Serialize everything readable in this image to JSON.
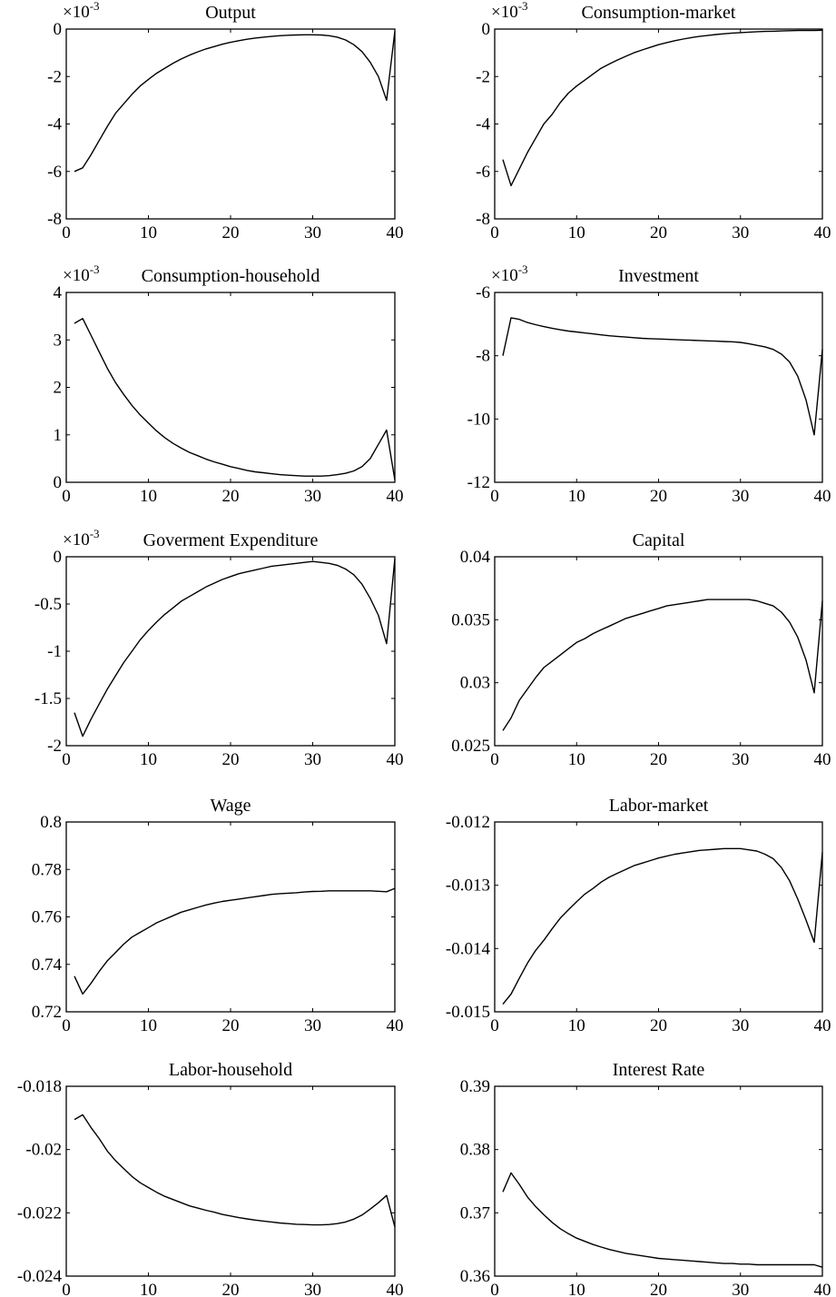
{
  "chart_data": [
    {
      "type": "line",
      "title": "Output",
      "exponent_label": "×10",
      "exponent_power": "-3",
      "xlim": [
        0,
        40
      ],
      "ylim": [
        -8,
        0
      ],
      "xticks": [
        0,
        10,
        20,
        30,
        40
      ],
      "xtick_labels": [
        "0",
        "10",
        "20",
        "30",
        "40"
      ],
      "yticks": [
        -8,
        -6,
        -4,
        -2,
        0
      ],
      "ytick_labels": [
        "-8",
        "-6",
        "-4",
        "-2",
        "0"
      ],
      "x": [
        1,
        2,
        3,
        4,
        5,
        6,
        7,
        8,
        9,
        10,
        11,
        12,
        13,
        14,
        15,
        16,
        17,
        18,
        19,
        20,
        21,
        22,
        23,
        24,
        25,
        26,
        27,
        28,
        29,
        30,
        31,
        32,
        33,
        34,
        35,
        36,
        37,
        38,
        39,
        40
      ],
      "y": [
        -6.0,
        -5.85,
        -5.3,
        -4.7,
        -4.1,
        -3.55,
        -3.15,
        -2.75,
        -2.4,
        -2.12,
        -1.86,
        -1.65,
        -1.44,
        -1.26,
        -1.1,
        -0.96,
        -0.84,
        -0.74,
        -0.64,
        -0.56,
        -0.49,
        -0.43,
        -0.38,
        -0.34,
        -0.31,
        -0.28,
        -0.26,
        -0.25,
        -0.24,
        -0.24,
        -0.25,
        -0.28,
        -0.34,
        -0.46,
        -0.66,
        -0.95,
        -1.4,
        -2.0,
        -3.0,
        -0.1
      ]
    },
    {
      "type": "line",
      "title": "Consumption-market",
      "exponent_label": "×10",
      "exponent_power": "-3",
      "xlim": [
        0,
        40
      ],
      "ylim": [
        -8,
        0
      ],
      "xticks": [
        0,
        10,
        20,
        30,
        40
      ],
      "xtick_labels": [
        "0",
        "10",
        "20",
        "30",
        "40"
      ],
      "yticks": [
        -8,
        -6,
        -4,
        -2,
        0
      ],
      "ytick_labels": [
        "-8",
        "-6",
        "-4",
        "-2",
        "0"
      ],
      "x": [
        1,
        2,
        3,
        4,
        5,
        6,
        7,
        8,
        9,
        10,
        11,
        12,
        13,
        14,
        15,
        16,
        17,
        18,
        19,
        20,
        21,
        22,
        23,
        24,
        25,
        26,
        27,
        28,
        29,
        30,
        31,
        32,
        33,
        34,
        35,
        36,
        37,
        38,
        39,
        40
      ],
      "y": [
        -5.5,
        -6.6,
        -5.9,
        -5.2,
        -4.6,
        -4.0,
        -3.6,
        -3.1,
        -2.7,
        -2.4,
        -2.15,
        -1.9,
        -1.65,
        -1.47,
        -1.3,
        -1.15,
        -1.0,
        -0.88,
        -0.77,
        -0.66,
        -0.57,
        -0.49,
        -0.42,
        -0.36,
        -0.31,
        -0.27,
        -0.23,
        -0.2,
        -0.17,
        -0.15,
        -0.13,
        -0.11,
        -0.1,
        -0.09,
        -0.08,
        -0.07,
        -0.06,
        -0.06,
        -0.06,
        -0.05
      ]
    },
    {
      "type": "line",
      "title": "Consumption-household",
      "exponent_label": "×10",
      "exponent_power": "-3",
      "xlim": [
        0,
        40
      ],
      "ylim": [
        0,
        4
      ],
      "xticks": [
        0,
        10,
        20,
        30,
        40
      ],
      "xtick_labels": [
        "0",
        "10",
        "20",
        "30",
        "40"
      ],
      "yticks": [
        0,
        1,
        2,
        3,
        4
      ],
      "ytick_labels": [
        "0",
        "1",
        "2",
        "3",
        "4"
      ],
      "x": [
        1,
        2,
        3,
        4,
        5,
        6,
        7,
        8,
        9,
        10,
        11,
        12,
        13,
        14,
        15,
        16,
        17,
        18,
        19,
        20,
        21,
        22,
        23,
        24,
        25,
        26,
        27,
        28,
        29,
        30,
        31,
        32,
        33,
        34,
        35,
        36,
        37,
        38,
        39,
        40
      ],
      "y": [
        3.35,
        3.45,
        3.1,
        2.75,
        2.4,
        2.1,
        1.85,
        1.62,
        1.42,
        1.25,
        1.08,
        0.94,
        0.82,
        0.72,
        0.63,
        0.56,
        0.49,
        0.43,
        0.38,
        0.33,
        0.29,
        0.25,
        0.22,
        0.2,
        0.18,
        0.16,
        0.15,
        0.14,
        0.13,
        0.13,
        0.13,
        0.14,
        0.16,
        0.19,
        0.24,
        0.33,
        0.5,
        0.8,
        1.1,
        0.05
      ]
    },
    {
      "type": "line",
      "title": "Investment",
      "exponent_label": "×10",
      "exponent_power": "-3",
      "xlim": [
        0,
        40
      ],
      "ylim": [
        -12,
        -6
      ],
      "xticks": [
        0,
        10,
        20,
        30,
        40
      ],
      "xtick_labels": [
        "0",
        "10",
        "20",
        "30",
        "40"
      ],
      "yticks": [
        -12,
        -10,
        -8,
        -6
      ],
      "ytick_labels": [
        "-12",
        "-10",
        "-8",
        "-6"
      ],
      "x": [
        1,
        2,
        3,
        4,
        5,
        6,
        7,
        8,
        9,
        10,
        11,
        12,
        13,
        14,
        15,
        16,
        17,
        18,
        19,
        20,
        21,
        22,
        23,
        24,
        25,
        26,
        27,
        28,
        29,
        30,
        31,
        32,
        33,
        34,
        35,
        36,
        37,
        38,
        39,
        40
      ],
      "y": [
        -8.0,
        -6.8,
        -6.85,
        -6.95,
        -7.02,
        -7.08,
        -7.13,
        -7.18,
        -7.22,
        -7.25,
        -7.28,
        -7.31,
        -7.34,
        -7.37,
        -7.39,
        -7.41,
        -7.43,
        -7.45,
        -7.46,
        -7.47,
        -7.48,
        -7.49,
        -7.5,
        -7.51,
        -7.52,
        -7.53,
        -7.54,
        -7.55,
        -7.56,
        -7.58,
        -7.62,
        -7.67,
        -7.72,
        -7.8,
        -7.95,
        -8.2,
        -8.65,
        -9.4,
        -10.5,
        -7.8
      ]
    },
    {
      "type": "line",
      "title": "Goverment Expenditure",
      "exponent_label": "×10",
      "exponent_power": "-3",
      "xlim": [
        0,
        40
      ],
      "ylim": [
        -2,
        0
      ],
      "xticks": [
        0,
        10,
        20,
        30,
        40
      ],
      "xtick_labels": [
        "0",
        "10",
        "20",
        "30",
        "40"
      ],
      "yticks": [
        -2,
        -1.5,
        -1,
        -0.5,
        0
      ],
      "ytick_labels": [
        "-2",
        "-1.5",
        "-1",
        "-0.5",
        "0"
      ],
      "x": [
        1,
        2,
        3,
        4,
        5,
        6,
        7,
        8,
        9,
        10,
        11,
        12,
        13,
        14,
        15,
        16,
        17,
        18,
        19,
        20,
        21,
        22,
        23,
        24,
        25,
        26,
        27,
        28,
        29,
        30,
        31,
        32,
        33,
        34,
        35,
        36,
        37,
        38,
        39,
        40
      ],
      "y": [
        -1.65,
        -1.9,
        -1.72,
        -1.56,
        -1.4,
        -1.26,
        -1.12,
        -1.0,
        -0.88,
        -0.78,
        -0.69,
        -0.61,
        -0.54,
        -0.47,
        -0.42,
        -0.37,
        -0.32,
        -0.28,
        -0.24,
        -0.21,
        -0.18,
        -0.16,
        -0.14,
        -0.12,
        -0.1,
        -0.09,
        -0.08,
        -0.07,
        -0.06,
        -0.05,
        -0.06,
        -0.07,
        -0.09,
        -0.13,
        -0.19,
        -0.29,
        -0.44,
        -0.62,
        -0.92,
        -0.02
      ]
    },
    {
      "type": "line",
      "title": "Capital",
      "xlim": [
        0,
        40
      ],
      "ylim": [
        0.025,
        0.04
      ],
      "xticks": [
        0,
        10,
        20,
        30,
        40
      ],
      "xtick_labels": [
        "0",
        "10",
        "20",
        "30",
        "40"
      ],
      "yticks": [
        0.025,
        0.03,
        0.035,
        0.04
      ],
      "ytick_labels": [
        "0.025",
        "0.03",
        "0.035",
        "0.04"
      ],
      "x": [
        1,
        2,
        3,
        4,
        5,
        6,
        7,
        8,
        9,
        10,
        11,
        12,
        13,
        14,
        15,
        16,
        17,
        18,
        19,
        20,
        21,
        22,
        23,
        24,
        25,
        26,
        27,
        28,
        29,
        30,
        31,
        32,
        33,
        34,
        35,
        36,
        37,
        38,
        39,
        40
      ],
      "y": [
        0.0262,
        0.0272,
        0.0286,
        0.0295,
        0.0304,
        0.0312,
        0.0317,
        0.0322,
        0.0327,
        0.0332,
        0.0335,
        0.0339,
        0.0342,
        0.0345,
        0.0348,
        0.0351,
        0.0353,
        0.0355,
        0.0357,
        0.0359,
        0.0361,
        0.0362,
        0.0363,
        0.0364,
        0.0365,
        0.0366,
        0.0366,
        0.0366,
        0.0366,
        0.0366,
        0.0366,
        0.0365,
        0.0363,
        0.0361,
        0.0356,
        0.0348,
        0.0336,
        0.0318,
        0.0292,
        0.0365
      ]
    },
    {
      "type": "line",
      "title": "Wage",
      "xlim": [
        0,
        40
      ],
      "ylim": [
        0.72,
        0.8
      ],
      "xticks": [
        0,
        10,
        20,
        30,
        40
      ],
      "xtick_labels": [
        "0",
        "10",
        "20",
        "30",
        "40"
      ],
      "yticks": [
        0.72,
        0.74,
        0.76,
        0.78,
        0.8
      ],
      "ytick_labels": [
        "0.72",
        "0.74",
        "0.76",
        "0.78",
        "0.8"
      ],
      "x": [
        1,
        2,
        3,
        4,
        5,
        6,
        7,
        8,
        9,
        10,
        11,
        12,
        13,
        14,
        15,
        16,
        17,
        18,
        19,
        20,
        21,
        22,
        23,
        24,
        25,
        26,
        27,
        28,
        29,
        30,
        31,
        32,
        33,
        34,
        35,
        36,
        37,
        38,
        39,
        40
      ],
      "y": [
        0.735,
        0.7275,
        0.732,
        0.737,
        0.7415,
        0.745,
        0.7485,
        0.7515,
        0.7535,
        0.7555,
        0.7575,
        0.759,
        0.7605,
        0.762,
        0.763,
        0.764,
        0.765,
        0.7658,
        0.7665,
        0.767,
        0.7675,
        0.768,
        0.7685,
        0.769,
        0.7695,
        0.7698,
        0.77,
        0.7702,
        0.7705,
        0.7707,
        0.7708,
        0.771,
        0.771,
        0.771,
        0.771,
        0.771,
        0.771,
        0.7708,
        0.7706,
        0.772
      ]
    },
    {
      "type": "line",
      "title": "Labor-market",
      "xlim": [
        0,
        40
      ],
      "ylim": [
        -0.015,
        -0.012
      ],
      "xticks": [
        0,
        10,
        20,
        30,
        40
      ],
      "xtick_labels": [
        "0",
        "10",
        "20",
        "30",
        "40"
      ],
      "yticks": [
        -0.015,
        -0.014,
        -0.013,
        -0.012
      ],
      "ytick_labels": [
        "-0.015",
        "-0.014",
        "-0.013",
        "-0.012"
      ],
      "x": [
        1,
        2,
        3,
        4,
        5,
        6,
        7,
        8,
        9,
        10,
        11,
        12,
        13,
        14,
        15,
        16,
        17,
        18,
        19,
        20,
        21,
        22,
        23,
        24,
        25,
        26,
        27,
        28,
        29,
        30,
        31,
        32,
        33,
        34,
        35,
        36,
        37,
        38,
        39,
        40
      ],
      "y": [
        -0.01488,
        -0.01472,
        -0.01447,
        -0.01423,
        -0.01403,
        -0.01387,
        -0.01369,
        -0.01352,
        -0.01339,
        -0.01326,
        -0.01314,
        -0.01305,
        -0.01295,
        -0.01287,
        -0.01281,
        -0.01275,
        -0.01269,
        -0.01265,
        -0.01261,
        -0.01257,
        -0.01254,
        -0.01251,
        -0.01249,
        -0.01247,
        -0.01245,
        -0.01244,
        -0.01243,
        -0.01242,
        -0.01242,
        -0.01242,
        -0.01244,
        -0.01246,
        -0.01251,
        -0.01258,
        -0.01272,
        -0.01293,
        -0.01322,
        -0.01355,
        -0.0139,
        -0.01248
      ]
    },
    {
      "type": "line",
      "title": "Labor-household",
      "xlim": [
        0,
        40
      ],
      "ylim": [
        -0.024,
        -0.018
      ],
      "xticks": [
        0,
        10,
        20,
        30,
        40
      ],
      "xtick_labels": [
        "0",
        "10",
        "20",
        "30",
        "40"
      ],
      "yticks": [
        -0.024,
        -0.022,
        -0.02,
        -0.018
      ],
      "ytick_labels": [
        "-0.024",
        "-0.022",
        "-0.02",
        "-0.018"
      ],
      "x": [
        1,
        2,
        3,
        4,
        5,
        6,
        7,
        8,
        9,
        10,
        11,
        12,
        13,
        14,
        15,
        16,
        17,
        18,
        19,
        20,
        21,
        22,
        23,
        24,
        25,
        26,
        27,
        28,
        29,
        30,
        31,
        32,
        33,
        34,
        35,
        36,
        37,
        38,
        39,
        40
      ],
      "y": [
        -0.01905,
        -0.0189,
        -0.0193,
        -0.01965,
        -0.02005,
        -0.02035,
        -0.0206,
        -0.02085,
        -0.02105,
        -0.0212,
        -0.02135,
        -0.02148,
        -0.02158,
        -0.02168,
        -0.02178,
        -0.02185,
        -0.02192,
        -0.02198,
        -0.02205,
        -0.0221,
        -0.02215,
        -0.02219,
        -0.02223,
        -0.02226,
        -0.02229,
        -0.02232,
        -0.02234,
        -0.02236,
        -0.02237,
        -0.02238,
        -0.02238,
        -0.02237,
        -0.02234,
        -0.02229,
        -0.0222,
        -0.02207,
        -0.02188,
        -0.02168,
        -0.02145,
        -0.02245
      ]
    },
    {
      "type": "line",
      "title": "Interest Rate",
      "xlim": [
        0,
        40
      ],
      "ylim": [
        0.36,
        0.39
      ],
      "xticks": [
        0,
        10,
        20,
        30,
        40
      ],
      "xtick_labels": [
        "0",
        "10",
        "20",
        "30",
        "40"
      ],
      "yticks": [
        0.36,
        0.37,
        0.38,
        0.39
      ],
      "ytick_labels": [
        "0.36",
        "0.37",
        "0.38",
        "0.39"
      ],
      "x": [
        1,
        2,
        3,
        4,
        5,
        6,
        7,
        8,
        9,
        10,
        11,
        12,
        13,
        14,
        15,
        16,
        17,
        18,
        19,
        20,
        21,
        22,
        23,
        24,
        25,
        26,
        27,
        28,
        29,
        30,
        31,
        32,
        33,
        34,
        35,
        36,
        37,
        38,
        39,
        40
      ],
      "y": [
        0.3733,
        0.3763,
        0.3745,
        0.3725,
        0.371,
        0.3697,
        0.3685,
        0.3675,
        0.3667,
        0.366,
        0.3655,
        0.365,
        0.3646,
        0.3642,
        0.3639,
        0.3636,
        0.3634,
        0.3632,
        0.363,
        0.3628,
        0.3627,
        0.3626,
        0.3625,
        0.3624,
        0.3623,
        0.3622,
        0.3621,
        0.362,
        0.362,
        0.3619,
        0.3619,
        0.3618,
        0.3618,
        0.3618,
        0.3618,
        0.3618,
        0.3618,
        0.3618,
        0.3618,
        0.3614
      ]
    }
  ]
}
